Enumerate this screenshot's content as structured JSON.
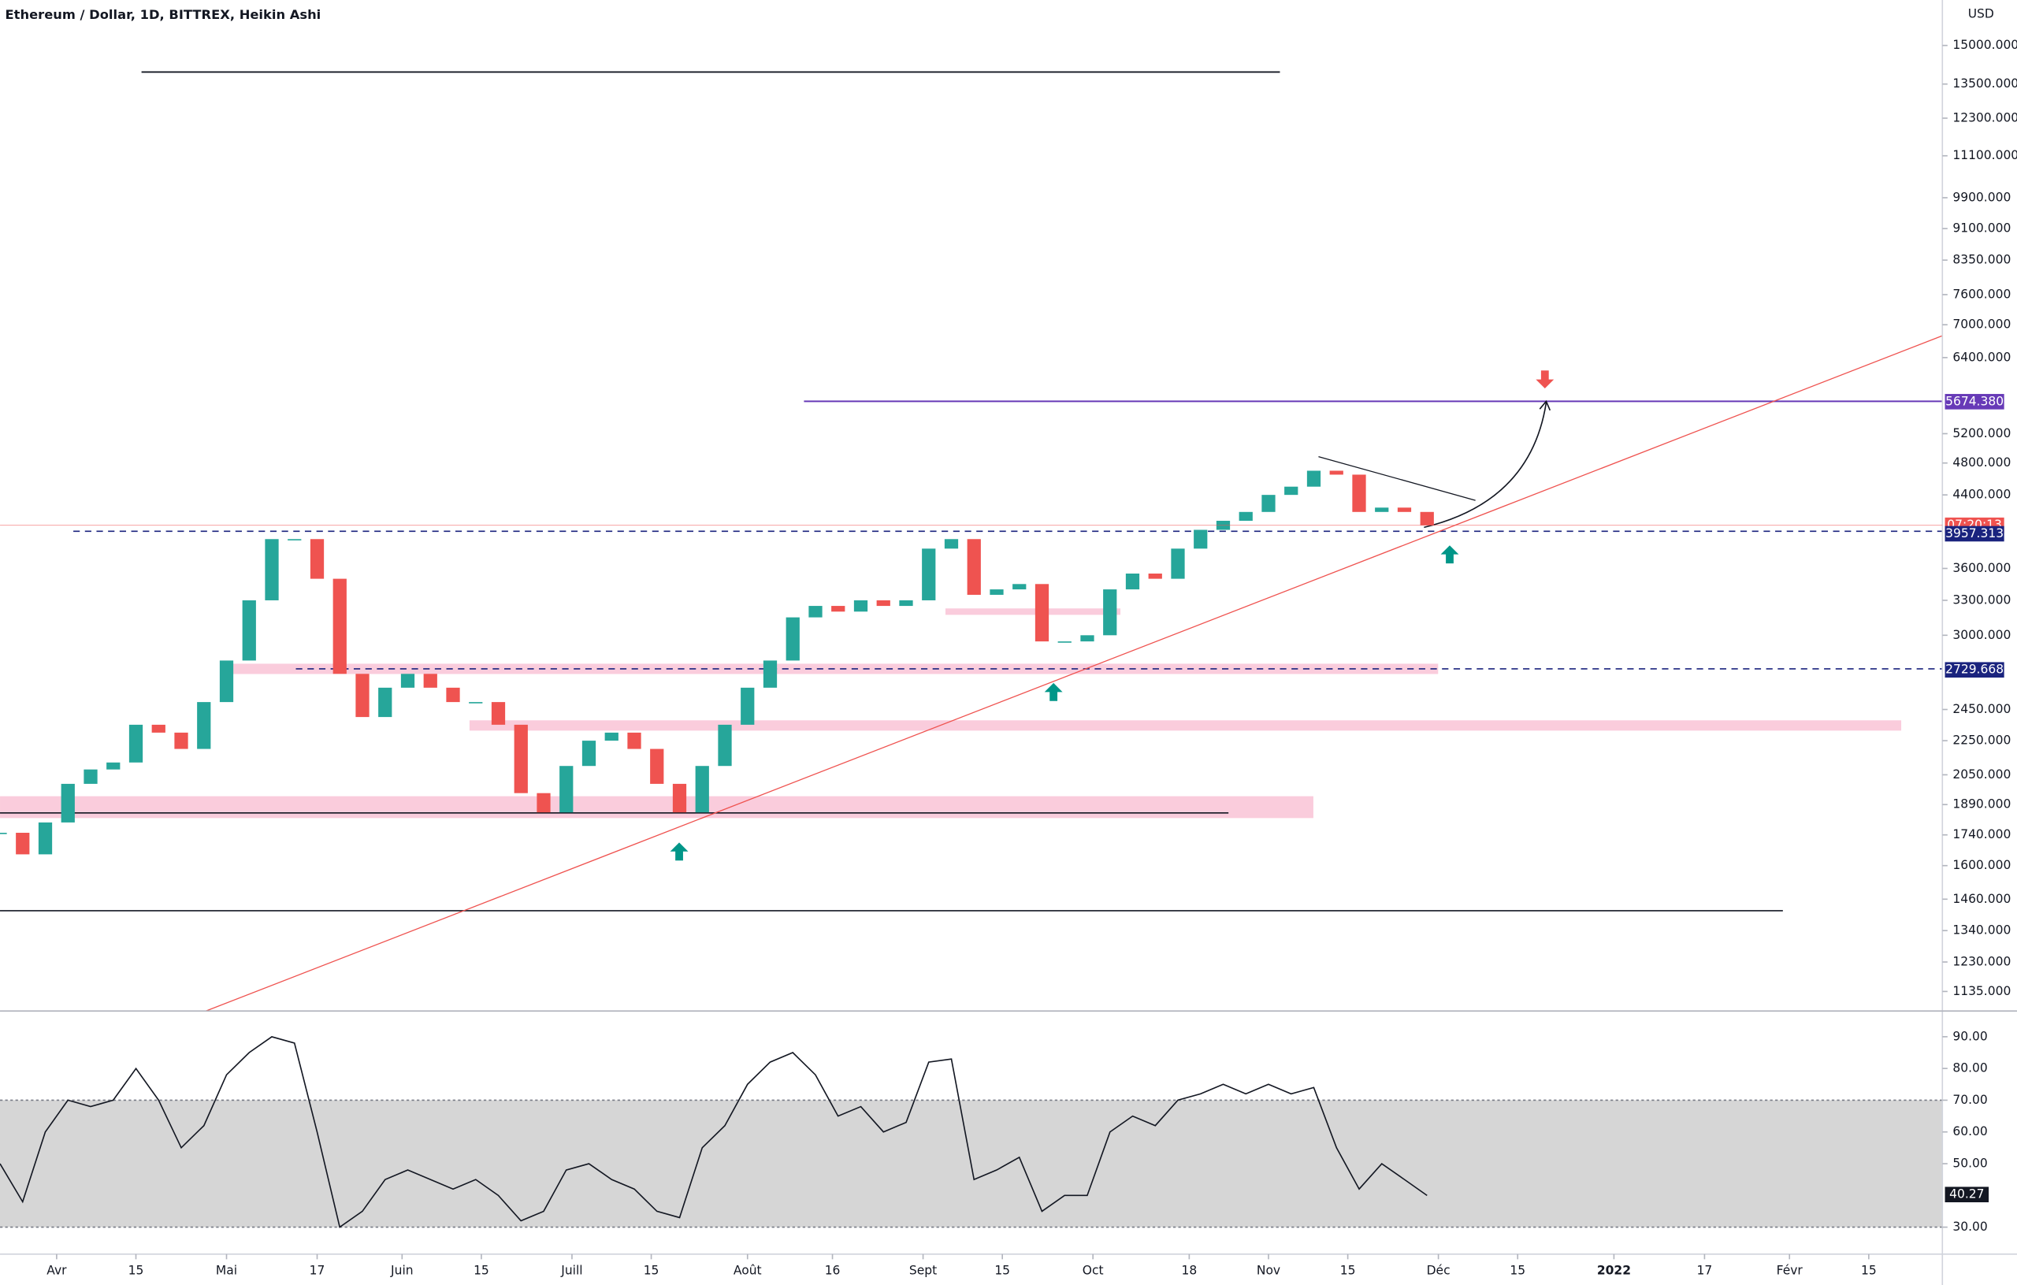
{
  "chart_data": [
    {
      "type": "candlestick",
      "title": "Ethereum / Dollar, 1D, BITTREX, Heikin Ashi",
      "currency": "USD",
      "log_scale": true,
      "up_color": "#26a69a",
      "down_color": "#ef5350",
      "xlim": [
        "2021-03-22",
        "2022-02-28"
      ],
      "x": [
        "2021-03-22",
        "2021-03-26",
        "2021-03-30",
        "2021-04-03",
        "2021-04-07",
        "2021-04-11",
        "2021-04-15",
        "2021-04-19",
        "2021-04-23",
        "2021-04-27",
        "2021-05-01",
        "2021-05-05",
        "2021-05-09",
        "2021-05-13",
        "2021-05-17",
        "2021-05-21",
        "2021-05-25",
        "2021-05-29",
        "2021-06-02",
        "2021-06-06",
        "2021-06-10",
        "2021-06-14",
        "2021-06-18",
        "2021-06-22",
        "2021-06-26",
        "2021-06-30",
        "2021-07-04",
        "2021-07-08",
        "2021-07-12",
        "2021-07-16",
        "2021-07-20",
        "2021-07-24",
        "2021-07-28",
        "2021-08-01",
        "2021-08-05",
        "2021-08-09",
        "2021-08-13",
        "2021-08-17",
        "2021-08-21",
        "2021-08-25",
        "2021-08-29",
        "2021-09-02",
        "2021-09-06",
        "2021-09-10",
        "2021-09-14",
        "2021-09-18",
        "2021-09-22",
        "2021-09-26",
        "2021-09-30",
        "2021-10-04",
        "2021-10-08",
        "2021-10-12",
        "2021-10-16",
        "2021-10-20",
        "2021-10-24",
        "2021-10-28",
        "2021-11-01",
        "2021-11-05",
        "2021-11-09",
        "2021-11-13",
        "2021-11-17",
        "2021-11-21",
        "2021-11-25",
        "2021-11-29"
      ],
      "values": [
        1750,
        1650,
        1800,
        2000,
        2080,
        2120,
        2350,
        2300,
        2200,
        2500,
        2800,
        3300,
        3900,
        3900,
        3500,
        2700,
        2400,
        2600,
        2700,
        2600,
        2500,
        2500,
        2350,
        1950,
        1850,
        2100,
        2250,
        2300,
        2200,
        2000,
        1850,
        2100,
        2350,
        2600,
        2800,
        3150,
        3250,
        3200,
        3300,
        3250,
        3300,
        3800,
        3900,
        3350,
        3400,
        3450,
        2950,
        2950,
        3000,
        3400,
        3550,
        3500,
        3800,
        4000,
        4100,
        4200,
        4400,
        4500,
        4700,
        4650,
        4200,
        4250,
        4200,
        4050
      ],
      "ylim": [
        1076,
        16980
      ],
      "yticks": [
        {
          "value": 15000,
          "label": "15000.000"
        },
        {
          "value": 13500,
          "label": "13500.000"
        },
        {
          "value": 12300,
          "label": "12300.000"
        },
        {
          "value": 11100,
          "label": "11100.000"
        },
        {
          "value": 9900,
          "label": "9900.000"
        },
        {
          "value": 9100,
          "label": "9100.000"
        },
        {
          "value": 8350,
          "label": "8350.000"
        },
        {
          "value": 7600,
          "label": "7600.000"
        },
        {
          "value": 7000,
          "label": "7000.000"
        },
        {
          "value": 6400,
          "label": "6400.000"
        },
        {
          "value": 5200,
          "label": "5200.000"
        },
        {
          "value": 4800,
          "label": "4800.000"
        },
        {
          "value": 4400,
          "label": "4400.000"
        },
        {
          "value": 3600,
          "label": "3600.000"
        },
        {
          "value": 3300,
          "label": "3300.000"
        },
        {
          "value": 3000,
          "label": "3000.000"
        },
        {
          "value": 2450,
          "label": "2450.000"
        },
        {
          "value": 2250,
          "label": "2250.000"
        },
        {
          "value": 2050,
          "label": "2050.000"
        },
        {
          "value": 1890,
          "label": "1890.000"
        },
        {
          "value": 1740,
          "label": "1740.000"
        },
        {
          "value": 1600,
          "label": "1600.000"
        },
        {
          "value": 1460,
          "label": "1460.000"
        },
        {
          "value": 1340,
          "label": "1340.000"
        },
        {
          "value": 1230,
          "label": "1230.000"
        },
        {
          "value": 1135,
          "label": "1135.000"
        }
      ],
      "price_tags": [
        {
          "value": 5674.38,
          "label": "5674.380",
          "color": "#673ab7"
        },
        {
          "value": 3957.313,
          "label": "3957.313",
          "color": "#1a237e"
        },
        {
          "value": 2729.668,
          "label": "2729.668",
          "color": "#1a237e"
        }
      ],
      "countdown": "07:20:13",
      "countdown_color": "#ef5350"
    },
    {
      "type": "line",
      "color": "#131722",
      "xlim": [
        "2021-03-22",
        "2022-02-28"
      ],
      "x": [
        "2021-03-22",
        "2021-03-26",
        "2021-03-30",
        "2021-04-03",
        "2021-04-07",
        "2021-04-11",
        "2021-04-15",
        "2021-04-19",
        "2021-04-23",
        "2021-04-27",
        "2021-05-01",
        "2021-05-05",
        "2021-05-09",
        "2021-05-13",
        "2021-05-17",
        "2021-05-21",
        "2021-05-25",
        "2021-05-29",
        "2021-06-02",
        "2021-06-06",
        "2021-06-10",
        "2021-06-14",
        "2021-06-18",
        "2021-06-22",
        "2021-06-26",
        "2021-06-30",
        "2021-07-04",
        "2021-07-08",
        "2021-07-12",
        "2021-07-16",
        "2021-07-20",
        "2021-07-24",
        "2021-07-28",
        "2021-08-01",
        "2021-08-05",
        "2021-08-09",
        "2021-08-13",
        "2021-08-17",
        "2021-08-21",
        "2021-08-25",
        "2021-08-29",
        "2021-09-02",
        "2021-09-06",
        "2021-09-10",
        "2021-09-14",
        "2021-09-18",
        "2021-09-22",
        "2021-09-26",
        "2021-09-30",
        "2021-10-04",
        "2021-10-08",
        "2021-10-12",
        "2021-10-16",
        "2021-10-20",
        "2021-10-24",
        "2021-10-28",
        "2021-11-01",
        "2021-11-05",
        "2021-11-09",
        "2021-11-13",
        "2021-11-17",
        "2021-11-21",
        "2021-11-25",
        "2021-11-29"
      ],
      "values": [
        50,
        38,
        60,
        70,
        68,
        70,
        80,
        70,
        55,
        62,
        78,
        85,
        90,
        88,
        60,
        30,
        35,
        45,
        48,
        45,
        42,
        45,
        40,
        32,
        35,
        48,
        50,
        45,
        42,
        35,
        33,
        55,
        62,
        75,
        82,
        85,
        78,
        65,
        68,
        60,
        63,
        82,
        83,
        45,
        48,
        52,
        35,
        40,
        40,
        60,
        65,
        62,
        70,
        72,
        75,
        72,
        75,
        72,
        74,
        55,
        42,
        50,
        45,
        40
      ],
      "last_label": {
        "value": 40.27,
        "label": "40.27"
      },
      "ylim": [
        21.5,
        98.1
      ],
      "yticks": [
        {
          "value": 90,
          "label": "90.00"
        },
        {
          "value": 80,
          "label": "80.00"
        },
        {
          "value": 70,
          "label": "70.00"
        },
        {
          "value": 60,
          "label": "60.00"
        },
        {
          "value": 50,
          "label": "50.00"
        },
        {
          "value": 30,
          "label": "30.00"
        }
      ],
      "band": [
        30,
        70
      ],
      "band_color": "#d6d6d6",
      "xticks": [
        {
          "value": "2021-04-01",
          "label": "Avr"
        },
        {
          "value": "2021-04-15",
          "label": "15"
        },
        {
          "value": "2021-05-01",
          "label": "Mai"
        },
        {
          "value": "2021-05-17",
          "label": "17"
        },
        {
          "value": "2021-06-01",
          "label": "Juin"
        },
        {
          "value": "2021-06-15",
          "label": "15"
        },
        {
          "value": "2021-07-01",
          "label": "Juill"
        },
        {
          "value": "2021-07-15",
          "label": "15"
        },
        {
          "value": "2021-08-01",
          "label": "Août"
        },
        {
          "value": "2021-08-16",
          "label": "16"
        },
        {
          "value": "2021-09-01",
          "label": "Sept"
        },
        {
          "value": "2021-09-15",
          "label": "15"
        },
        {
          "value": "2021-10-01",
          "label": "Oct"
        },
        {
          "value": "2021-10-18",
          "label": "18"
        },
        {
          "value": "2021-11-01",
          "label": "Nov"
        },
        {
          "value": "2021-11-15",
          "label": "15"
        },
        {
          "value": "2021-12-01",
          "label": "Déc"
        },
        {
          "value": "2021-12-15",
          "label": "15"
        },
        {
          "value": "2022-01-01",
          "label": "2022"
        },
        {
          "value": "2022-01-17",
          "label": "17"
        },
        {
          "value": "2022-02-01",
          "label": "Févr"
        },
        {
          "value": "2022-02-15",
          "label": "15"
        }
      ]
    }
  ]
}
